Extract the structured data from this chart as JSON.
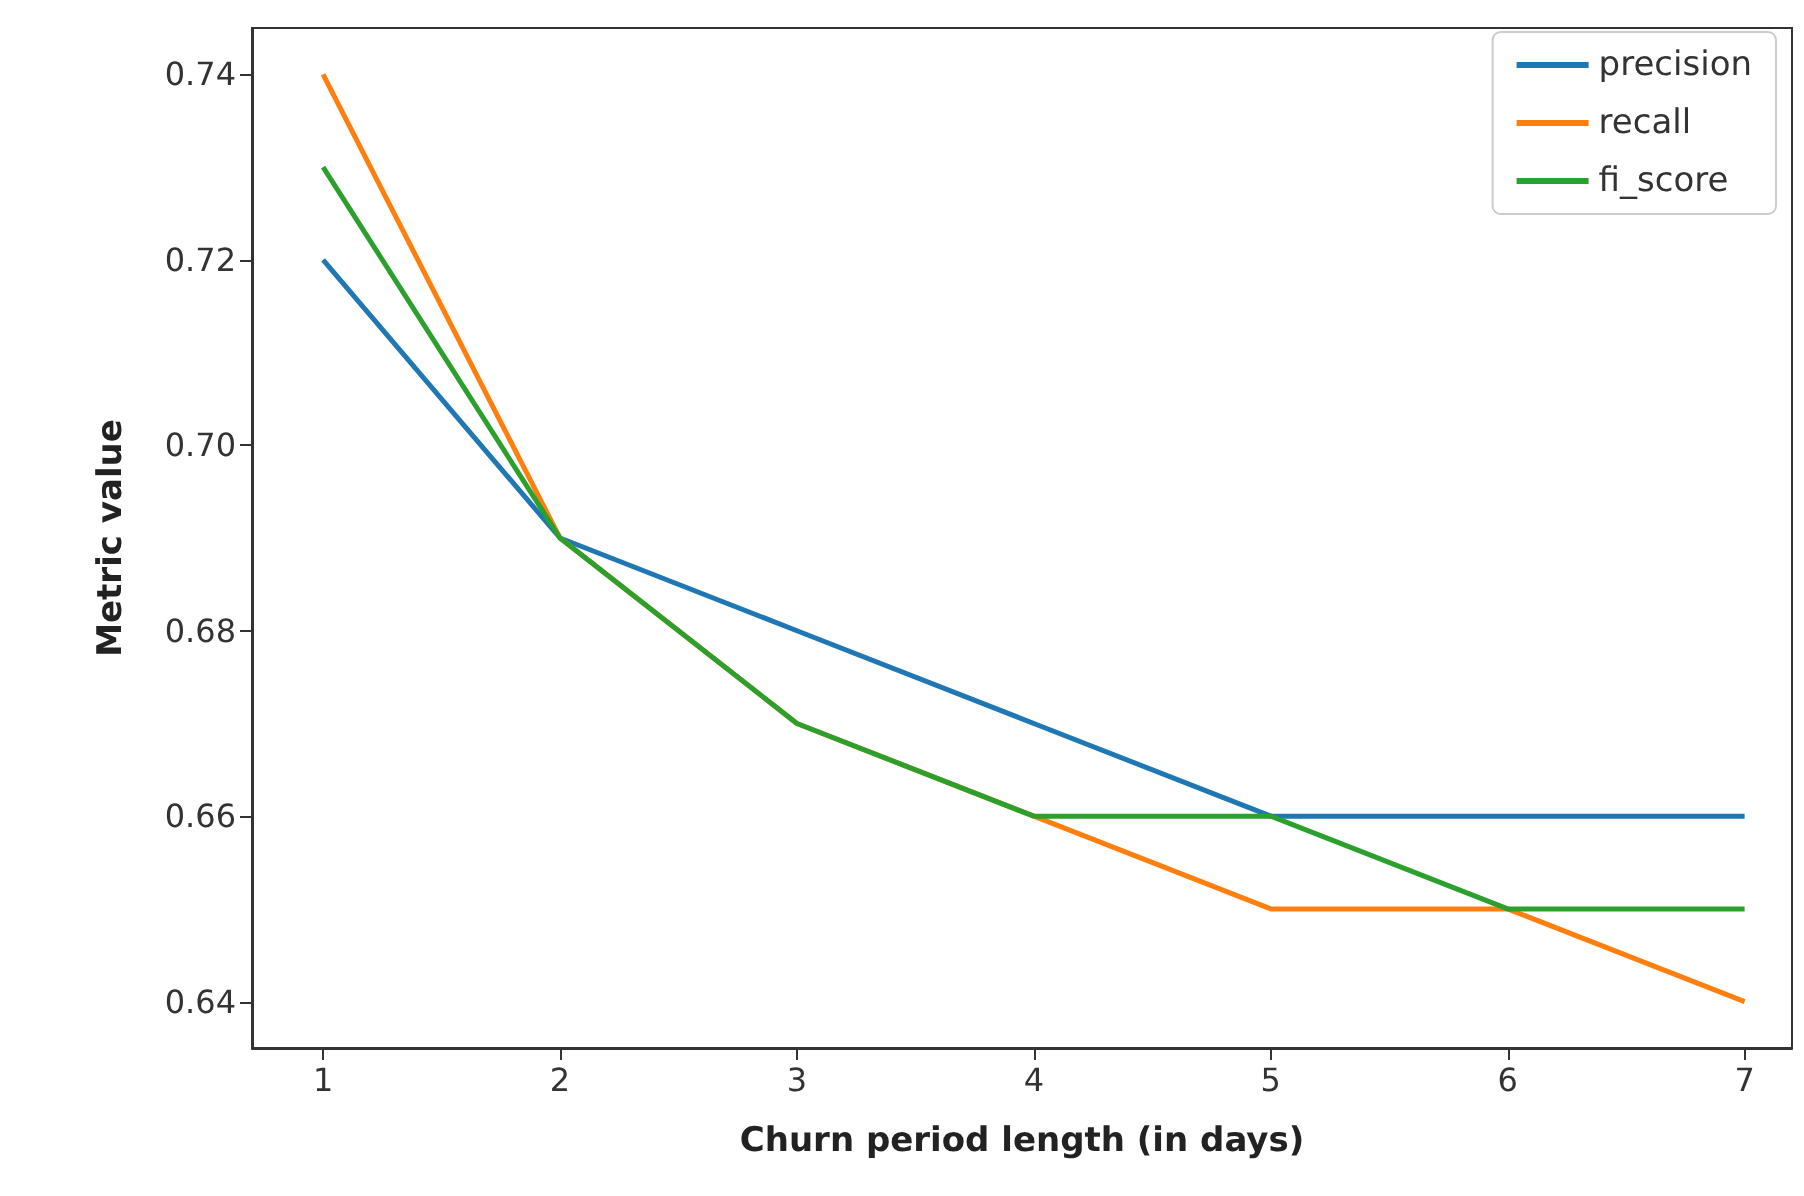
{
  "chart_data": {
    "type": "line",
    "xlabel": "Churn period length (in days)",
    "ylabel": "Metric value",
    "x": [
      1,
      2,
      3,
      4,
      5,
      6,
      7
    ],
    "series": [
      {
        "name": "precision",
        "color": "#1f77b4",
        "values": [
          0.72,
          0.69,
          0.68,
          0.67,
          0.66,
          0.66,
          0.66
        ]
      },
      {
        "name": "recall",
        "color": "#ff7f0e",
        "values": [
          0.74,
          0.69,
          0.67,
          0.66,
          0.65,
          0.65,
          0.64
        ]
      },
      {
        "name": "fi_score",
        "color": "#2ca02c",
        "values": [
          0.73,
          0.69,
          0.67,
          0.66,
          0.66,
          0.65,
          0.65
        ]
      }
    ],
    "xlim": [
      0.7,
      7.2
    ],
    "ylim": [
      0.635,
      0.745
    ],
    "xticks": [
      1,
      2,
      3,
      4,
      5,
      6,
      7
    ],
    "yticks": [
      0.64,
      0.66,
      0.68,
      {
        "value": 0.7,
        "label": "0.70"
      },
      0.72,
      0.74
    ],
    "grid": false,
    "legend": "top right",
    "marker": "none",
    "line_style": "solid"
  }
}
